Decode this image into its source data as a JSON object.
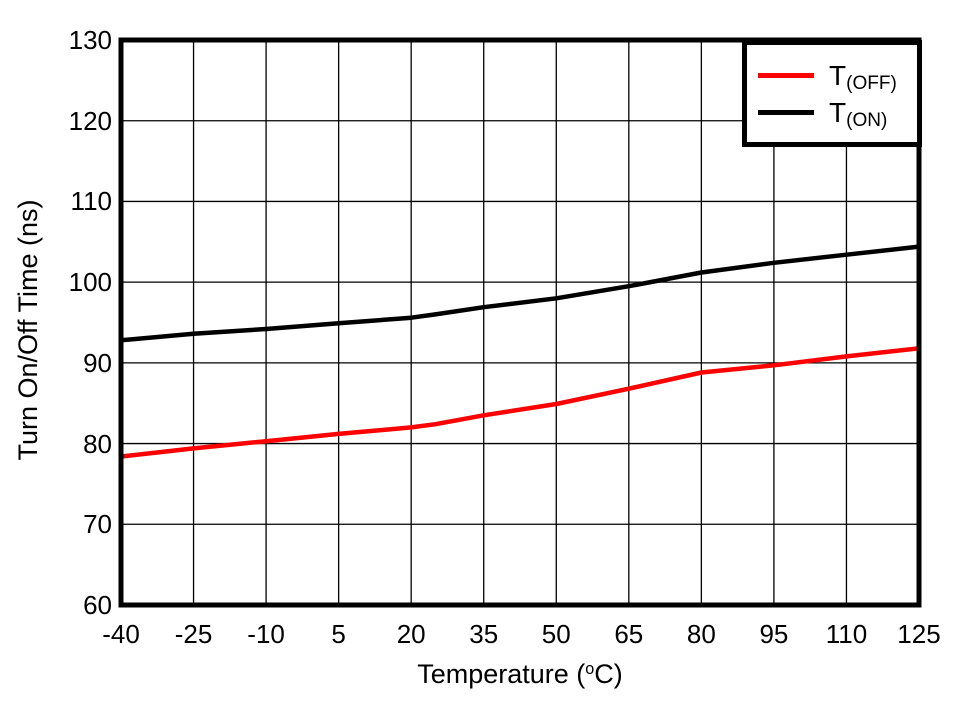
{
  "chart_data": {
    "type": "line",
    "xlabel": "Temperature (°C)",
    "xlabel_parts": {
      "prefix": "Temperature (",
      "sup": "o",
      "suffix": "C)"
    },
    "ylabel": "Turn On/Off Time (ns)",
    "xlim": [
      -40,
      125
    ],
    "ylim": [
      60,
      130
    ],
    "xticks": [
      -40,
      -25,
      -10,
      5,
      20,
      35,
      50,
      65,
      80,
      95,
      110,
      125
    ],
    "yticks": [
      60,
      70,
      80,
      90,
      100,
      110,
      120,
      130
    ],
    "grid": true,
    "legend_position": "top-right",
    "x": [
      -40,
      -25,
      -10,
      5,
      20,
      25,
      35,
      50,
      65,
      80,
      95,
      110,
      125
    ],
    "series": [
      {
        "name": "T(OFF)",
        "name_main": "T",
        "name_sub": "(OFF)",
        "color": "#ff0000",
        "values": [
          78.4,
          79.4,
          80.3,
          81.2,
          82.0,
          82.4,
          83.5,
          84.9,
          86.8,
          88.8,
          89.7,
          90.8,
          91.8
        ]
      },
      {
        "name": "T(ON)",
        "name_main": "T",
        "name_sub": "(ON)",
        "color": "#000000",
        "values": [
          92.8,
          93.6,
          94.2,
          94.9,
          95.6,
          96.0,
          96.9,
          98.0,
          99.5,
          101.2,
          102.4,
          103.4,
          104.4
        ]
      }
    ]
  }
}
